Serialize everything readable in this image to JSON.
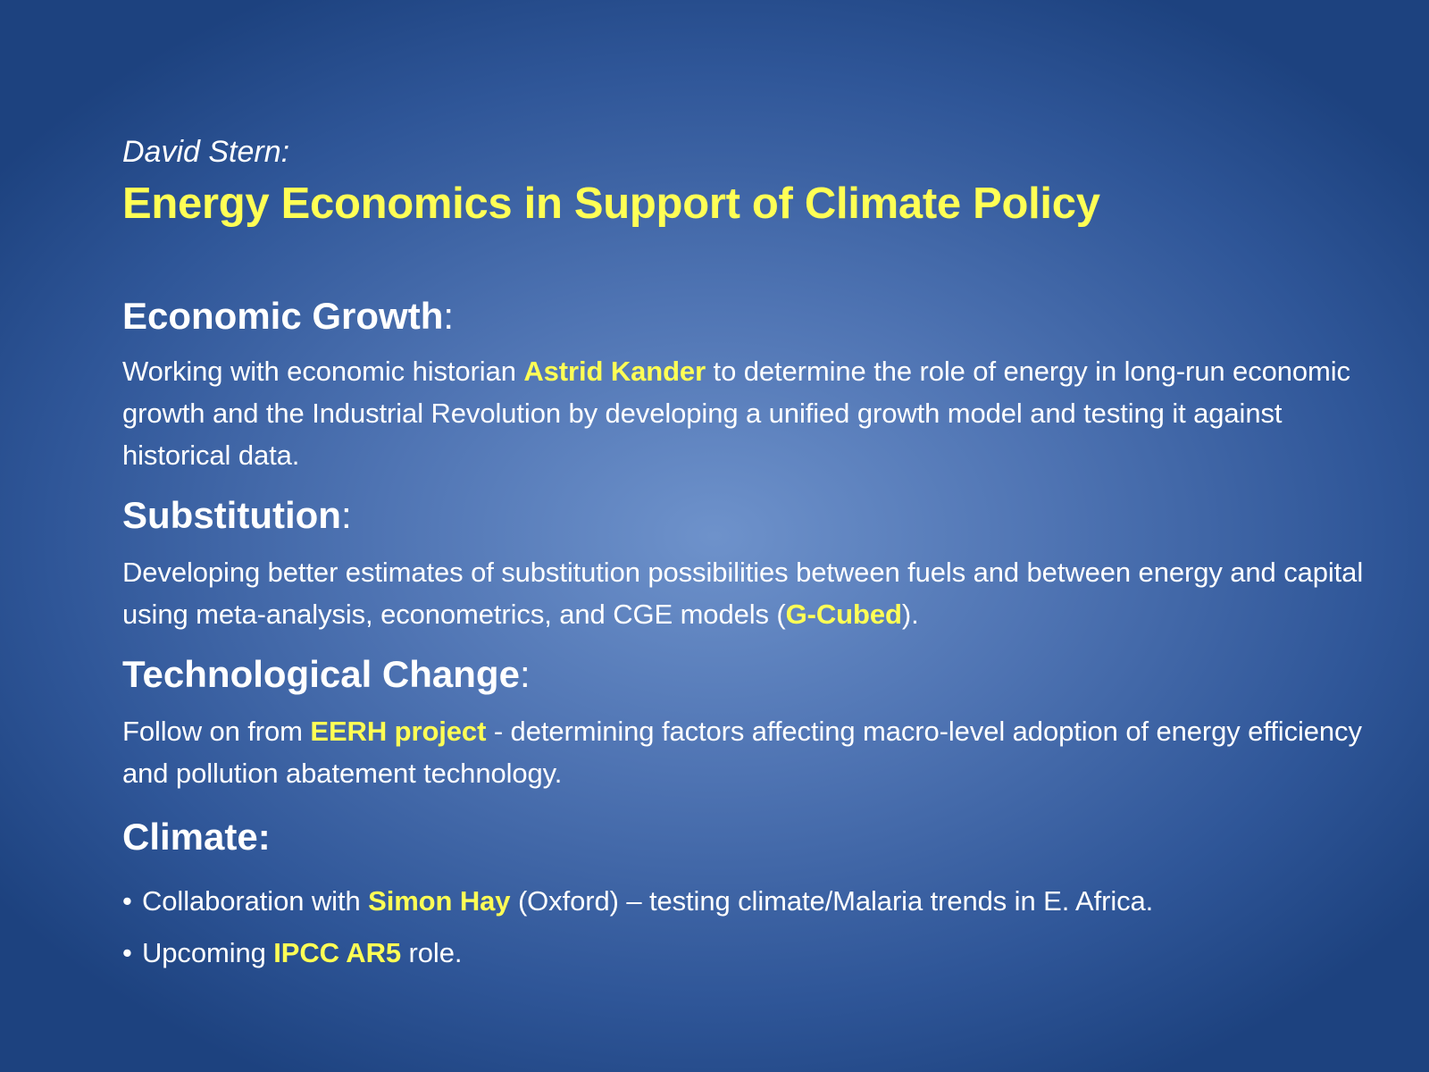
{
  "slide": {
    "author": "David Stern:",
    "title": "Energy Economics in Support of Climate Policy",
    "colors": {
      "background_center": "#6e92cb",
      "background_edge": "#1d427f",
      "highlight": "#ffff55",
      "text": "#ffffff"
    }
  },
  "sections": {
    "growth": {
      "heading": "Economic Growth",
      "colon": ":",
      "body_pre": "Working with economic historian ",
      "body_highlight": "Astrid Kander",
      "body_post": " to determine the role of energy in long-run economic growth and the Industrial Revolution by developing a unified growth model and testing it against historical data."
    },
    "substitution": {
      "heading": "Substitution",
      "colon": ":",
      "body_pre": "Developing better estimates of substitution possibilities between fuels and between energy and capital using meta-analysis, econometrics, and CGE models (",
      "body_highlight": "G-Cubed",
      "body_post": ")."
    },
    "technology": {
      "heading": "Technological Change",
      "colon": ":",
      "body_pre": "Follow on from ",
      "body_highlight": "EERH project",
      "body_post": " - determining factors affecting macro-level adoption of energy efficiency and pollution abatement technology."
    },
    "climate": {
      "heading": "Climate:",
      "bullets": [
        {
          "bullet": "•",
          "pre": "Collaboration with ",
          "highlight": "Simon Hay",
          "post": " (Oxford) – testing climate/Malaria trends in E. Africa."
        },
        {
          "bullet": "•",
          "pre": "Upcoming ",
          "highlight": "IPCC AR5",
          "post": " role."
        }
      ]
    }
  }
}
